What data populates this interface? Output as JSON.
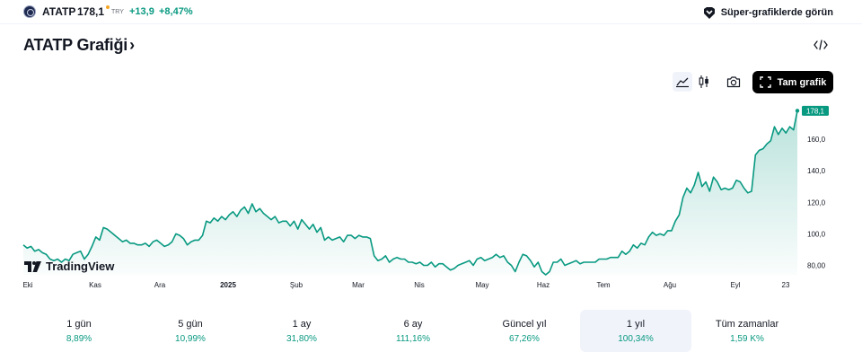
{
  "ticker": {
    "symbol": "ATATP",
    "price": "178,1",
    "currency": "TRY",
    "change": "+13,9",
    "change_percent": "+8,47%",
    "up_color": "#089981"
  },
  "super_charts": {
    "label": "Süper-grafiklerde görün"
  },
  "header": {
    "title": "ATATP Grafiği",
    "chevron": "›"
  },
  "toolbar": {
    "full_chart_label": "Tam grafik",
    "icons": [
      "area-chart-icon",
      "candles-icon",
      "camera-icon",
      "fullscreen-icon"
    ]
  },
  "branding": {
    "tradingview": "TradingView"
  },
  "last_price_label": "178,1",
  "periods": [
    {
      "label": "1 gün",
      "value": "8,89%"
    },
    {
      "label": "5 gün",
      "value": "10,99%"
    },
    {
      "label": "1 ay",
      "value": "31,80%"
    },
    {
      "label": "6 ay",
      "value": "111,16%"
    },
    {
      "label": "Güncel yıl",
      "value": "67,26%"
    },
    {
      "label": "1 yıl",
      "value": "100,34%",
      "selected": true
    },
    {
      "label": "Tüm zamanlar",
      "value": "1,59 K%"
    }
  ],
  "chart_data": {
    "type": "area",
    "ylim": [
      74,
      180
    ],
    "y_ticks": [
      {
        "value": 80,
        "label": "80,00"
      },
      {
        "value": 100,
        "label": "100,0"
      },
      {
        "value": 120,
        "label": "120,0"
      },
      {
        "value": 140,
        "label": "140,0"
      },
      {
        "value": 160,
        "label": "160,0"
      }
    ],
    "x_ticks": [
      {
        "label": "Eki",
        "bold": false
      },
      {
        "label": "Kas",
        "bold": false
      },
      {
        "label": "Ara",
        "bold": false
      },
      {
        "label": "2025",
        "bold": true
      },
      {
        "label": "Şub",
        "bold": false
      },
      {
        "label": "Mar",
        "bold": false
      },
      {
        "label": "Nis",
        "bold": false
      },
      {
        "label": "May",
        "bold": false
      },
      {
        "label": "Haz",
        "bold": false
      },
      {
        "label": "Tem",
        "bold": false
      },
      {
        "label": "Ağu",
        "bold": false
      },
      {
        "label": "Eyl",
        "bold": false
      },
      {
        "label": "23",
        "bold": false
      }
    ],
    "series": [
      {
        "color": "#089981",
        "values": [
          93,
          91,
          92,
          89,
          90,
          88,
          87,
          84,
          83,
          84,
          82,
          84,
          83,
          87,
          88,
          89,
          84,
          87,
          92,
          98,
          96,
          104,
          103,
          101,
          99,
          97,
          95,
          96,
          94,
          94,
          93,
          93,
          94,
          92,
          95,
          96,
          94,
          92,
          93,
          95,
          100,
          99,
          97,
          93,
          95,
          96,
          96,
          99,
          108,
          107,
          110,
          108,
          111,
          109,
          112,
          114,
          111,
          115,
          117,
          113,
          119,
          114,
          116,
          113,
          111,
          109,
          111,
          107,
          108,
          108,
          105,
          108,
          103,
          109,
          106,
          103,
          106,
          101,
          104,
          96,
          98,
          96,
          97,
          98,
          95,
          99,
          99,
          97,
          99,
          98,
          98,
          97,
          86,
          83,
          84,
          86,
          82,
          84,
          85,
          84,
          84,
          82,
          82,
          81,
          82,
          80,
          80,
          82,
          79,
          81,
          81,
          79,
          77,
          78,
          80,
          81,
          82,
          83,
          80,
          84,
          85,
          83,
          84,
          85,
          87,
          85,
          86,
          82,
          80,
          76,
          82,
          87,
          86,
          83,
          79,
          82,
          76,
          74,
          76,
          82,
          82,
          84,
          80,
          81,
          82,
          83,
          81,
          82,
          82,
          82,
          82,
          84,
          84,
          84,
          85,
          85,
          85,
          89,
          87,
          89,
          93,
          91,
          94,
          93,
          98,
          101,
          99,
          100,
          99,
          102,
          102,
          108,
          112,
          123,
          129,
          126,
          131,
          139,
          130,
          133,
          127,
          136,
          133,
          128,
          129,
          128,
          129,
          134,
          133,
          129,
          126,
          127,
          150,
          153,
          154,
          157,
          159,
          168,
          163,
          167,
          164,
          168,
          166,
          178.1
        ]
      }
    ]
  }
}
